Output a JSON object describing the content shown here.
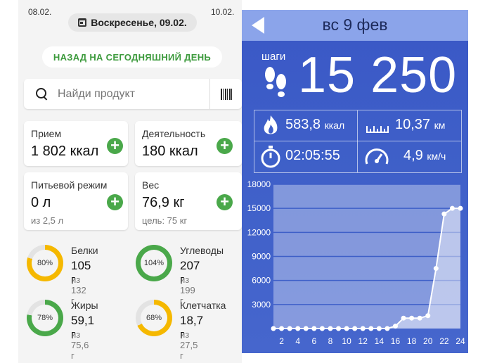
{
  "diary": {
    "prev_date": "08.02.",
    "next_date": "10.02.",
    "current_date": "Воскресенье, 09.02.",
    "back_today": "НАЗАД НА СЕГОДНЯШНИЙ ДЕНЬ",
    "search_placeholder": "Найди продукт",
    "cards": {
      "intake": {
        "label": "Прием",
        "value": "1 802 ккал"
      },
      "activity": {
        "label": "Деятельность",
        "value": "180 ккал"
      },
      "water": {
        "label": "Питьевой режим",
        "value": "0 л",
        "sub": "из 2,5 л"
      },
      "weight": {
        "label": "Вес",
        "value": "76,9 кг",
        "sub": "цель: 75 кг"
      }
    },
    "macros": [
      {
        "name": "Белки",
        "value": "105 г",
        "of": "из 132 г",
        "percent_label": "80%",
        "percent": 80,
        "color": "#f5b800"
      },
      {
        "name": "Углеводы",
        "value": "207 г",
        "of": "из 199 г",
        "percent_label": "104%",
        "percent": 104,
        "color": "#4aa84a"
      },
      {
        "name": "Жиры",
        "value": "59,1 г",
        "of": "из 75,6 г",
        "percent_label": "78%",
        "percent": 78,
        "color": "#4aa84a"
      },
      {
        "name": "Клетчатка",
        "value": "18,7 г",
        "of": "из 27,5 г",
        "percent_label": "68%",
        "percent": 68,
        "color": "#f5b800"
      }
    ],
    "colors": {
      "accent": "#4aa84a",
      "warning": "#f5b800"
    }
  },
  "pedometer": {
    "date": "вс 9 фев",
    "steps_label": "шаги",
    "steps": "15 250",
    "calories": {
      "value": "583,8",
      "unit": "ккал"
    },
    "distance": {
      "value": "10,37",
      "unit": "км"
    },
    "duration": {
      "value": "02:05:55"
    },
    "speed": {
      "value": "4,9",
      "unit": "км/ч"
    }
  },
  "chart_data": {
    "type": "line",
    "ylim": [
      0,
      18000
    ],
    "yticks": [
      "18000",
      "15000",
      "12000",
      "9000",
      "6000",
      "3000"
    ],
    "xticks": [
      "2",
      "4",
      "6",
      "8",
      "10",
      "12",
      "14",
      "16",
      "18",
      "20",
      "22",
      "24"
    ],
    "x": [
      0,
      1,
      2,
      3,
      4,
      5,
      6,
      7,
      8,
      9,
      10,
      11,
      12,
      13,
      14,
      15,
      16,
      17,
      18,
      19,
      20,
      21,
      22,
      23
    ],
    "values": [
      0,
      0,
      0,
      0,
      0,
      0,
      0,
      0,
      0,
      0,
      0,
      0,
      0,
      0,
      0,
      300,
      1300,
      1300,
      1300,
      1600,
      7500,
      14300,
      15000,
      15000
    ],
    "grid": true
  }
}
